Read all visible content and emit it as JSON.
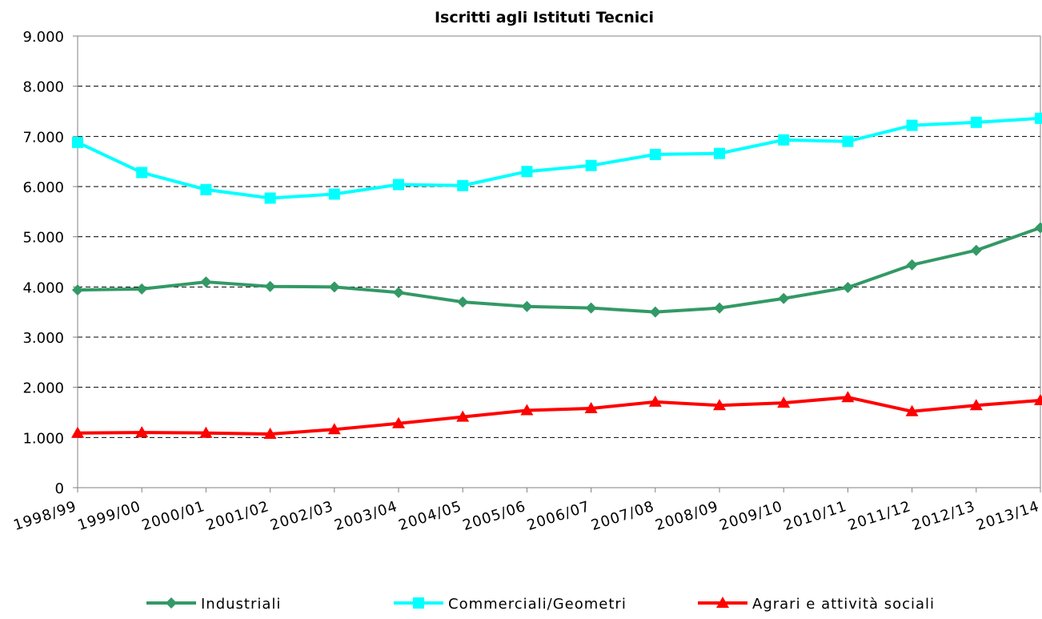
{
  "chart_data": {
    "type": "line",
    "title": "Iscritti agli Istituti Tecnici",
    "categories": [
      "1998/99",
      "1999/00",
      "2000/01",
      "2001/02",
      "2002/03",
      "2003/04",
      "2004/05",
      "2005/06",
      "2006/07",
      "2007/08",
      "2008/09",
      "2009/10",
      "2010/11",
      "2011/12",
      "2012/13",
      "2013/14"
    ],
    "series": [
      {
        "name": "Industriali",
        "color": "#339966",
        "marker": "diamond",
        "values": [
          3940,
          3960,
          4100,
          4010,
          4000,
          3890,
          3700,
          3610,
          3580,
          3500,
          3580,
          3770,
          3990,
          4440,
          4730,
          5180
        ]
      },
      {
        "name": "Commerciali/Geometri",
        "color": "#00ffff",
        "marker": "square",
        "values": [
          6880,
          6280,
          5940,
          5770,
          5850,
          6040,
          6020,
          6300,
          6420,
          6640,
          6660,
          6930,
          6900,
          7220,
          7280,
          7360
        ]
      },
      {
        "name": "Agrari e attività sociali",
        "color": "#ff0000",
        "marker": "triangle",
        "values": [
          1090,
          1100,
          1090,
          1070,
          1160,
          1280,
          1410,
          1540,
          1580,
          1710,
          1640,
          1690,
          1800,
          1520,
          1640,
          1740
        ]
      }
    ],
    "ylim": [
      0,
      9000
    ],
    "yticks": [
      0,
      {
        "value": 1000,
        "label": "1.000"
      },
      {
        "value": 2000,
        "label": "2.000"
      },
      {
        "value": 3000,
        "label": "3.000"
      },
      {
        "value": 4000,
        "label": "4.000"
      },
      {
        "value": 5000,
        "label": "5.000"
      },
      {
        "value": 6000,
        "label": "6.000"
      },
      {
        "value": 7000,
        "label": "7.000"
      },
      {
        "value": 8000,
        "label": "8.000"
      },
      {
        "value": 9000,
        "label": "9.000"
      }
    ],
    "grid": true,
    "legend": "bottom"
  }
}
